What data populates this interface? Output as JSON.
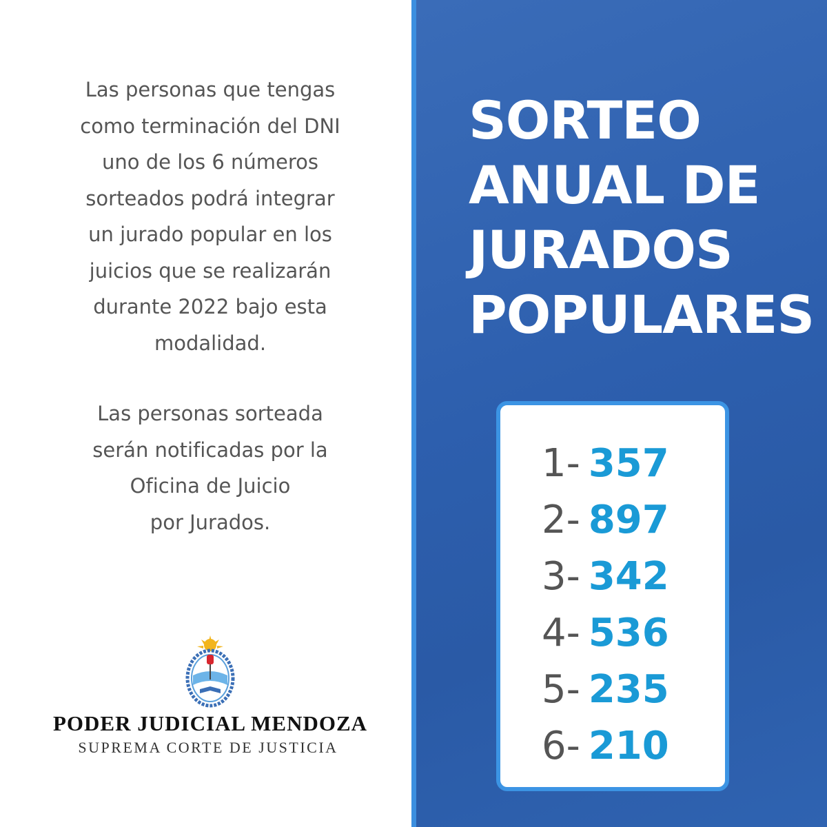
{
  "intro": {
    "paragraph1": [
      "Las personas que tengas",
      "como terminación del DNI",
      "uno de los 6 números",
      "sorteados podrá integrar",
      "un jurado popular en los",
      "juicios que se realizarán",
      "durante 2022 bajo esta",
      "modalidad."
    ],
    "paragraph2": [
      "Las personas sorteada",
      "serán notificadas por la",
      "Oficina de Juicio",
      "por Jurados."
    ]
  },
  "footer": {
    "org": "PODER JUDICIAL MENDOZA",
    "sub": "SUPREMA CORTE DE JUSTICIA"
  },
  "title": [
    "SORTEO",
    "ANUAL DE",
    "JURADOS",
    "POPULARES"
  ],
  "draw": [
    {
      "label": "1-",
      "number": 357
    },
    {
      "label": "2-",
      "number": 897
    },
    {
      "label": "3-",
      "number": 342
    },
    {
      "label": "4-",
      "number": 536
    },
    {
      "label": "5-",
      "number": 235
    },
    {
      "label": "6-",
      "number": 210
    }
  ]
}
